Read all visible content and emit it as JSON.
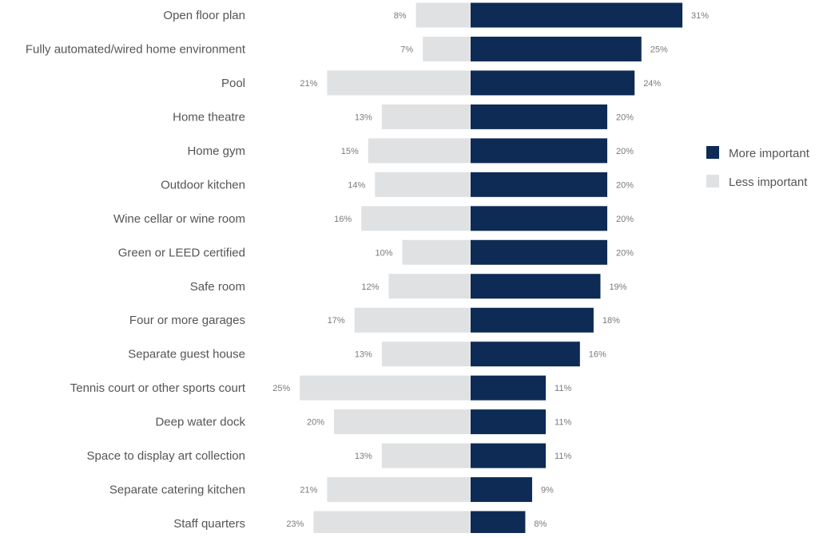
{
  "colors": {
    "more_important": "#0d2b54",
    "less_important": "#e0e1e3"
  },
  "chart_data": {
    "type": "bar",
    "orientation": "horizontal-diverging",
    "categories": [
      "Open floor plan",
      "Fully automated/wired home environment",
      "Pool",
      "Home theatre",
      "Home gym",
      "Outdoor kitchen",
      "Wine cellar or wine room",
      "Green or LEED certified",
      "Safe room",
      "Four or more garages",
      "Separate guest house",
      "Tennis court or other sports court",
      "Deep water dock",
      "Space to display art collection",
      "Separate catering kitchen",
      "Staff quarters"
    ],
    "series": [
      {
        "name": "More important",
        "values": [
          31,
          25,
          24,
          20,
          20,
          20,
          20,
          20,
          19,
          18,
          16,
          11,
          11,
          11,
          9,
          8
        ],
        "labels": [
          "31%",
          "25%",
          "24%",
          "20%",
          "20%",
          "20%",
          "20%",
          "20%",
          "19%",
          "18%",
          "16%",
          "11%",
          "11%",
          "11%",
          "9%",
          "8%"
        ]
      },
      {
        "name": "Less important",
        "values": [
          8,
          7,
          21,
          13,
          15,
          14,
          16,
          10,
          12,
          17,
          13,
          25,
          20,
          13,
          21,
          23
        ],
        "labels": [
          "8%",
          "7%",
          "21%",
          "13%",
          "15%",
          "14%",
          "16%",
          "10%",
          "12%",
          "17%",
          "13%",
          "25%",
          "20%",
          "13%",
          "21%",
          "23%"
        ]
      }
    ],
    "legend_position": "right",
    "grid": false
  }
}
